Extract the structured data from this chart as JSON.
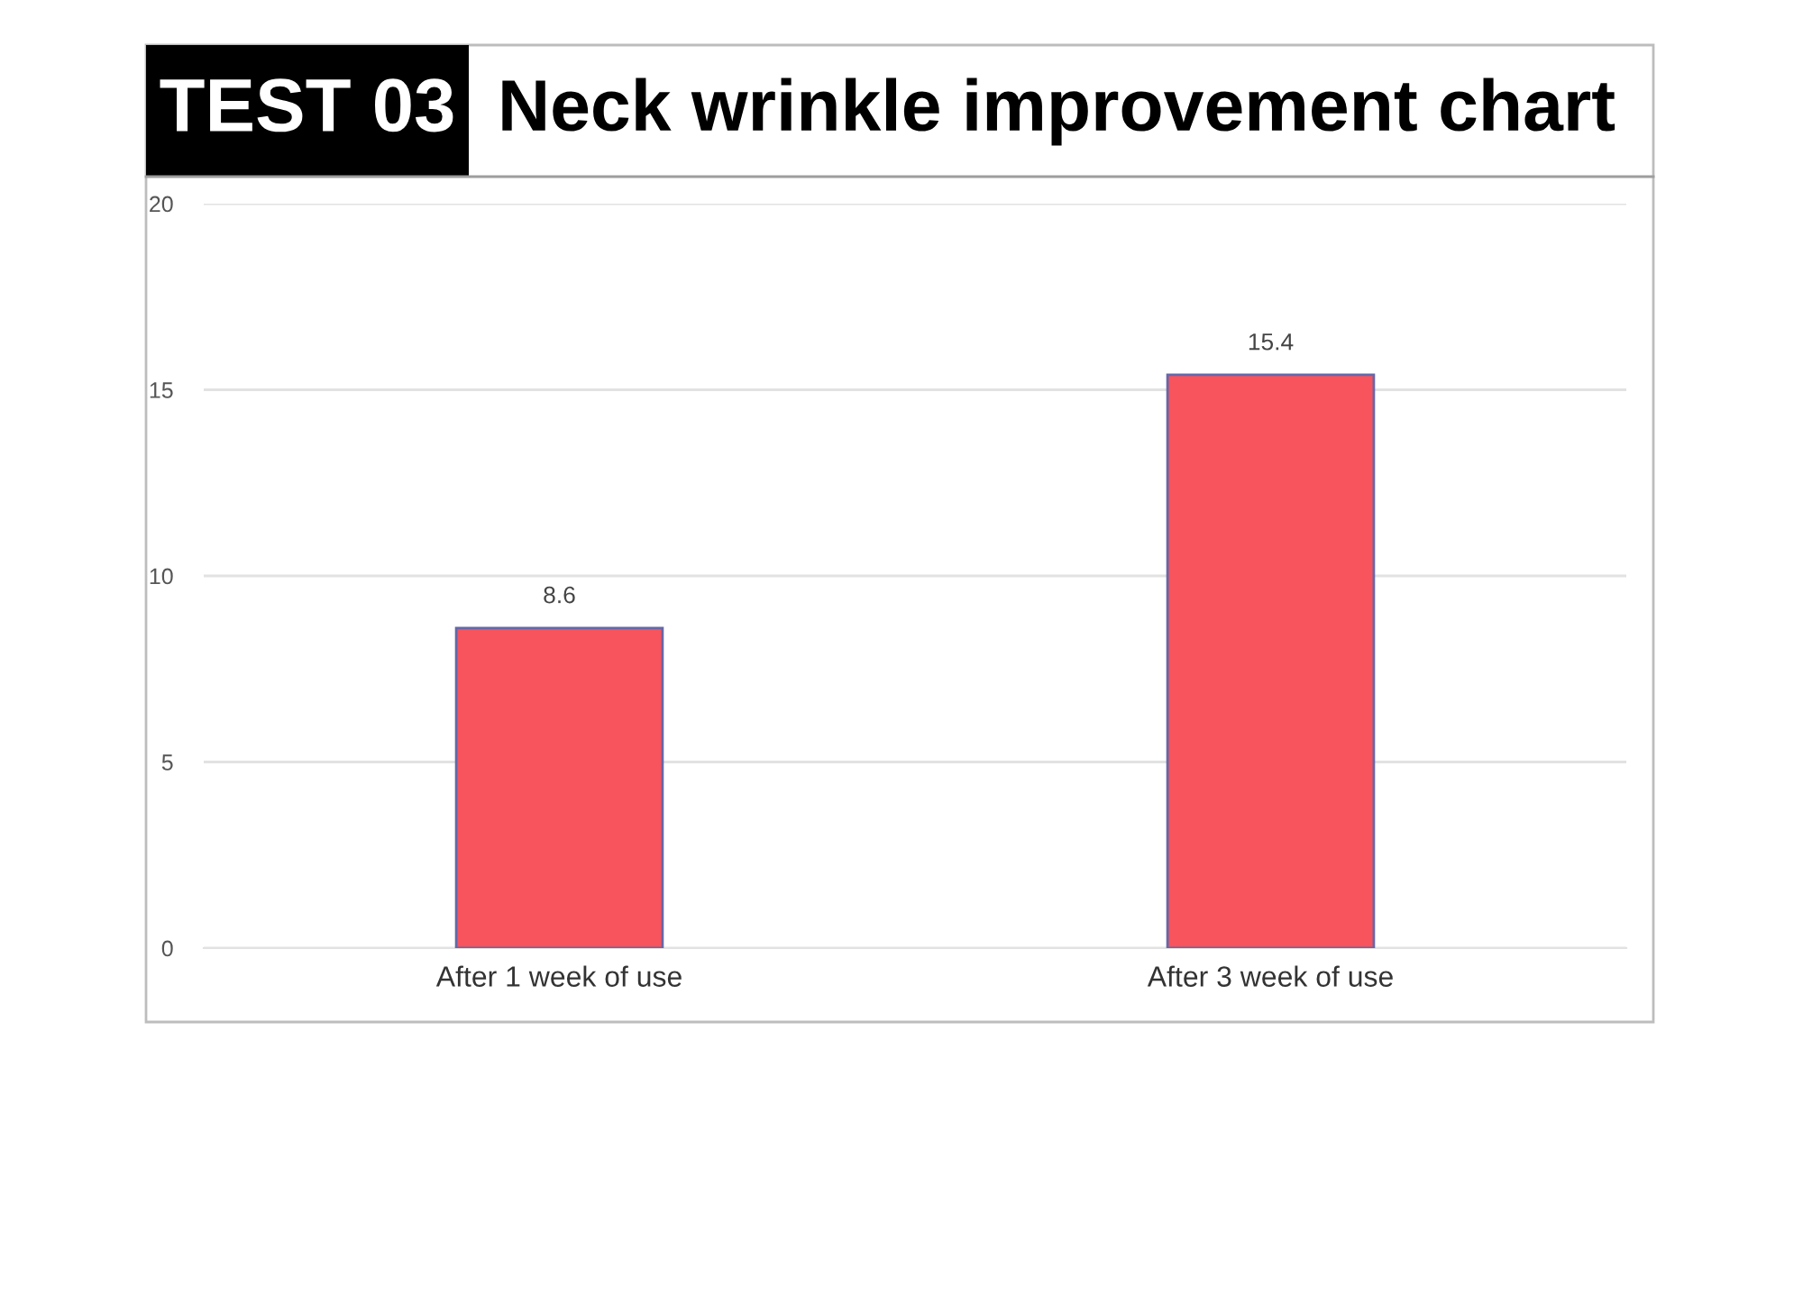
{
  "chart_data": {
    "type": "bar",
    "title": "Neck wrinkle improvement chart",
    "annotations": [
      "TEST 03"
    ],
    "categories": [
      "After 1 week of use",
      "After 3 week of use"
    ],
    "values": [
      8.6,
      15.4
    ],
    "color": "#f7545d",
    "ylim": [
      0,
      20
    ],
    "yticks": [
      0,
      5,
      10,
      15,
      20
    ],
    "grid": "y",
    "data_labels": true
  }
}
